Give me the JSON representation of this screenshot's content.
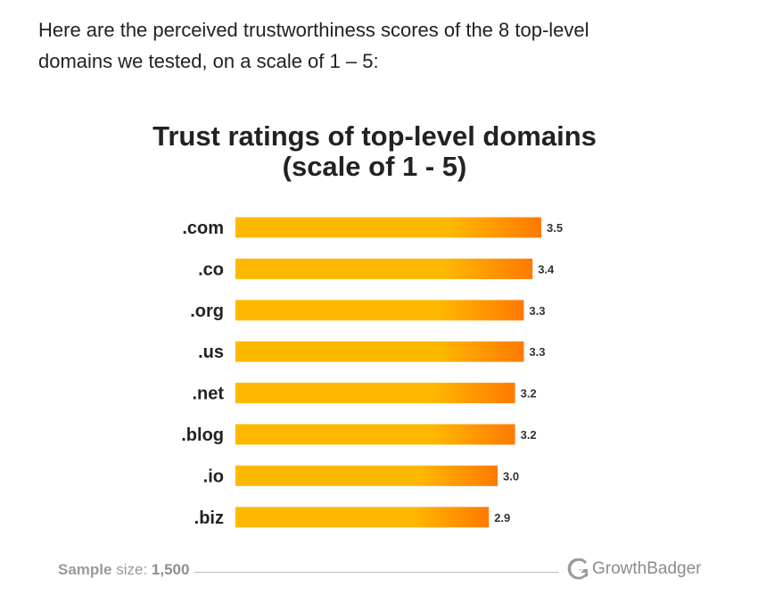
{
  "intro": {
    "line1": "Here are the perceived trustworthiness scores of the 8 top-level",
    "line2": "domains we tested, on a scale of 1 – 5:"
  },
  "chart_data": {
    "type": "bar",
    "orientation": "horizontal",
    "title_line1": "Trust ratings of top-level domains",
    "title_line2": "(scale of 1 - 5)",
    "categories": [
      ".com",
      ".co",
      ".org",
      ".us",
      ".net",
      ".blog",
      ".io",
      ".biz"
    ],
    "values": [
      3.5,
      3.4,
      3.3,
      3.3,
      3.2,
      3.2,
      3.0,
      2.9
    ],
    "value_labels": [
      "3.5",
      "3.4",
      "3.3",
      "3.3",
      "3.2",
      "3.2",
      "3.0",
      "2.9"
    ],
    "xlim": [
      1,
      5
    ],
    "grid": false,
    "colors": {
      "bar_start": "#FFB800",
      "bar_end": "#FF7A00"
    }
  },
  "footer": {
    "sample_label": "Sample",
    "sample_size_word": "size:",
    "sample_value": "1,500",
    "brand": "GrowthBadger",
    "brand_icon": "growthbadger-logo-icon"
  }
}
